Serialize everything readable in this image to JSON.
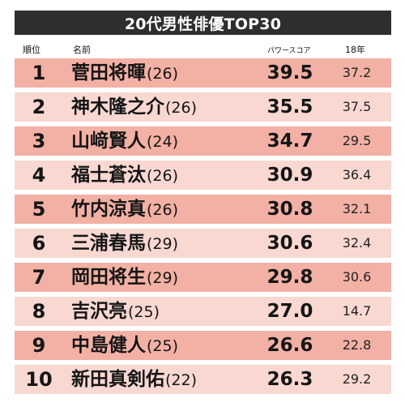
{
  "title": "20代男性俳優TOP30",
  "columns": {
    "rank": "順位",
    "name": "名前",
    "score": "パワースコア",
    "prev": "18年"
  },
  "colors": {
    "title_bg": "#2e2e2e",
    "row_dark": "#f2b1a4",
    "row_light": "#f8d8d1"
  },
  "rows": [
    {
      "rank": "1",
      "name": "菅田将暉",
      "age": "(26)",
      "score": "39.5",
      "prev": "37.2"
    },
    {
      "rank": "2",
      "name": "神木隆之介",
      "age": "(26)",
      "score": "35.5",
      "prev": "37.5"
    },
    {
      "rank": "3",
      "name": "山﨑賢人",
      "age": "(24)",
      "score": "34.7",
      "prev": "29.5"
    },
    {
      "rank": "4",
      "name": "福士蒼汰",
      "age": "(26)",
      "score": "30.9",
      "prev": "36.4"
    },
    {
      "rank": "5",
      "name": "竹内涼真",
      "age": "(26)",
      "score": "30.8",
      "prev": "32.1"
    },
    {
      "rank": "6",
      "name": "三浦春馬",
      "age": "(29)",
      "score": "30.6",
      "prev": "32.4"
    },
    {
      "rank": "7",
      "name": "岡田将生",
      "age": "(29)",
      "score": "29.8",
      "prev": "30.6"
    },
    {
      "rank": "8",
      "name": "吉沢亮",
      "age": "(25)",
      "score": "27.0",
      "prev": "14.7"
    },
    {
      "rank": "9",
      "name": "中島健人",
      "age": "(25)",
      "score": "26.6",
      "prev": "22.8"
    },
    {
      "rank": "10",
      "name": "新田真剣佑",
      "age": "(22)",
      "score": "26.3",
      "prev": "29.2"
    }
  ]
}
